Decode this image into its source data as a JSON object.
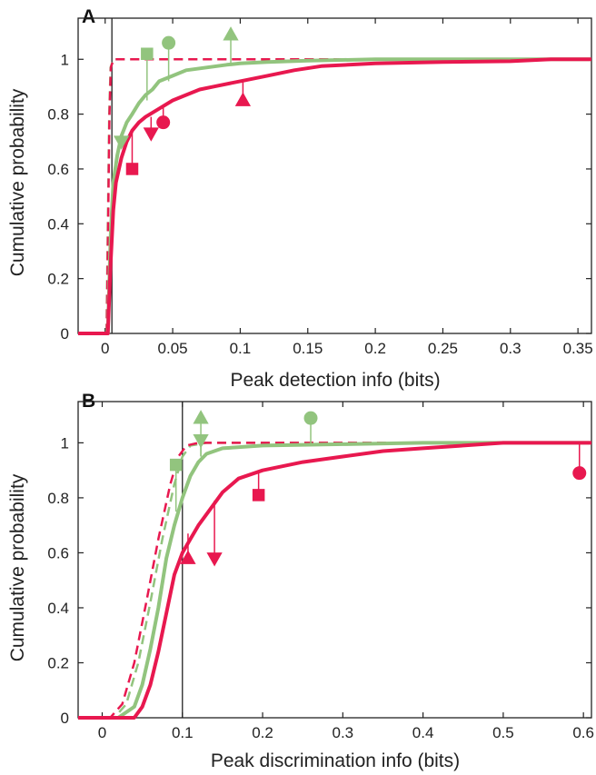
{
  "colors": {
    "green": "#92c47e",
    "red": "#e8184f",
    "axis": "#222222",
    "vline": "#222222"
  },
  "chart_data": [
    {
      "panel": "A",
      "type": "line",
      "xlabel": "Peak detection info (bits)",
      "ylabel": "Cumulative probability",
      "xlim": [
        -0.02,
        0.36
      ],
      "ylim": [
        0,
        1.15
      ],
      "xticks": [
        0,
        0.05,
        0.1,
        0.15,
        0.2,
        0.25,
        0.3,
        0.35
      ],
      "xtick_labels": [
        "0",
        "0.05",
        "0.1",
        "0.15",
        "0.2",
        "0.25",
        "0.3",
        "0.35"
      ],
      "yticks": [
        0,
        0.2,
        0.4,
        0.6,
        0.8,
        1
      ],
      "ytick_labels": [
        "0",
        "0.2",
        "0.4",
        "0.6",
        "0.8",
        "1"
      ],
      "vline": 0.005,
      "series": [
        {
          "color": "green",
          "style": "solid",
          "width": 4,
          "x": [
            -0.02,
            0.002,
            0.004,
            0.006,
            0.009,
            0.012,
            0.016,
            0.02,
            0.025,
            0.03,
            0.035,
            0.04,
            0.05,
            0.06,
            0.075,
            0.09,
            0.1,
            0.12,
            0.15,
            0.2,
            0.36
          ],
          "y": [
            0,
            0,
            0.35,
            0.55,
            0.65,
            0.72,
            0.77,
            0.8,
            0.84,
            0.87,
            0.89,
            0.92,
            0.94,
            0.96,
            0.97,
            0.98,
            0.985,
            0.99,
            0.995,
            1,
            1
          ]
        },
        {
          "color": "red",
          "style": "solid",
          "width": 4,
          "x": [
            -0.02,
            0.002,
            0.004,
            0.006,
            0.008,
            0.012,
            0.016,
            0.02,
            0.025,
            0.03,
            0.04,
            0.05,
            0.06,
            0.07,
            0.08,
            0.1,
            0.12,
            0.14,
            0.16,
            0.2,
            0.25,
            0.3,
            0.33,
            0.36
          ],
          "y": [
            0,
            0,
            0.25,
            0.45,
            0.55,
            0.64,
            0.7,
            0.74,
            0.77,
            0.79,
            0.82,
            0.85,
            0.87,
            0.89,
            0.9,
            0.92,
            0.94,
            0.96,
            0.975,
            0.985,
            0.99,
            0.993,
            1,
            1
          ]
        },
        {
          "color": "green",
          "style": "dashed",
          "width": 2.5,
          "x": [
            -0.02,
            0.001,
            0.002,
            0.003,
            0.004,
            0.006,
            0.36
          ],
          "y": [
            0,
            0,
            0.4,
            0.8,
            0.97,
            1,
            1
          ]
        },
        {
          "color": "red",
          "style": "dashed",
          "width": 2.5,
          "x": [
            -0.02,
            0.0012,
            0.0022,
            0.0032,
            0.0042,
            0.0062,
            0.36
          ],
          "y": [
            0,
            0,
            0.4,
            0.8,
            0.97,
            1,
            1
          ]
        }
      ],
      "markers": [
        {
          "shape": "square",
          "color": "green",
          "x": 0.031,
          "y": 1.02,
          "stem_to": 0.85
        },
        {
          "shape": "circle",
          "color": "green",
          "x": 0.047,
          "y": 1.06,
          "stem_to": 0.92
        },
        {
          "shape": "triangle-up",
          "color": "green",
          "x": 0.093,
          "y": 1.09,
          "stem_to": 0.985
        },
        {
          "shape": "triangle-down",
          "color": "green",
          "x": 0.012,
          "y": 0.7,
          "stem_to": 0.71
        },
        {
          "shape": "square",
          "color": "red",
          "x": 0.02,
          "y": 0.6,
          "stem_to": 0.73
        },
        {
          "shape": "triangle-down",
          "color": "red",
          "x": 0.034,
          "y": 0.73,
          "stem_to": 0.79
        },
        {
          "shape": "circle",
          "color": "red",
          "x": 0.043,
          "y": 0.77,
          "stem_to": 0.83
        },
        {
          "shape": "triangle-up",
          "color": "red",
          "x": 0.102,
          "y": 0.85,
          "stem_to": 0.92
        }
      ]
    },
    {
      "panel": "B",
      "type": "line",
      "xlabel": "Peak discrimination info (bits)",
      "ylabel": "Cumulative probability",
      "xlim": [
        -0.03,
        0.61
      ],
      "ylim": [
        0,
        1.15
      ],
      "xticks": [
        0,
        0.1,
        0.2,
        0.3,
        0.4,
        0.5,
        0.6
      ],
      "xtick_labels": [
        "0",
        "0.1",
        "0.2",
        "0.3",
        "0.4",
        "0.5",
        "0.6"
      ],
      "yticks": [
        0,
        0.2,
        0.4,
        0.6,
        0.8,
        1
      ],
      "ytick_labels": [
        "0",
        "0.2",
        "0.4",
        "0.6",
        "0.8",
        "1"
      ],
      "vline": 0.1,
      "series": [
        {
          "color": "green",
          "style": "solid",
          "width": 4,
          "x": [
            -0.03,
            0.02,
            0.04,
            0.05,
            0.06,
            0.07,
            0.08,
            0.09,
            0.1,
            0.11,
            0.12,
            0.13,
            0.15,
            0.2,
            0.3,
            0.4,
            0.61
          ],
          "y": [
            0,
            0,
            0.04,
            0.12,
            0.25,
            0.4,
            0.58,
            0.7,
            0.8,
            0.88,
            0.93,
            0.96,
            0.98,
            0.99,
            0.995,
            1,
            1
          ]
        },
        {
          "color": "red",
          "style": "solid",
          "width": 4,
          "x": [
            -0.03,
            0.04,
            0.05,
            0.06,
            0.07,
            0.08,
            0.09,
            0.1,
            0.11,
            0.12,
            0.13,
            0.15,
            0.17,
            0.2,
            0.25,
            0.3,
            0.35,
            0.4,
            0.45,
            0.5,
            0.61
          ],
          "y": [
            0,
            0,
            0.04,
            0.12,
            0.24,
            0.38,
            0.52,
            0.6,
            0.65,
            0.7,
            0.74,
            0.82,
            0.87,
            0.9,
            0.93,
            0.95,
            0.97,
            0.98,
            0.99,
            1,
            1
          ]
        },
        {
          "color": "green",
          "style": "dashed",
          "width": 2.5,
          "x": [
            -0.03,
            0.015,
            0.03,
            0.045,
            0.06,
            0.075,
            0.09,
            0.1,
            0.11,
            0.13,
            0.61
          ],
          "y": [
            0,
            0,
            0.05,
            0.2,
            0.42,
            0.65,
            0.85,
            0.95,
            0.99,
            1,
            1
          ]
        },
        {
          "color": "red",
          "style": "dashed",
          "width": 2.5,
          "x": [
            -0.03,
            0.01,
            0.025,
            0.04,
            0.055,
            0.07,
            0.085,
            0.095,
            0.105,
            0.12,
            0.61
          ],
          "y": [
            0,
            0,
            0.05,
            0.2,
            0.42,
            0.65,
            0.85,
            0.95,
            0.99,
            1,
            1
          ]
        }
      ],
      "markers": [
        {
          "shape": "square",
          "color": "green",
          "x": 0.092,
          "y": 0.92,
          "stem_to": 0.75
        },
        {
          "shape": "triangle-up",
          "color": "green",
          "x": 0.123,
          "y": 1.09,
          "stem_to": 0.95
        },
        {
          "shape": "triangle-down",
          "color": "green",
          "x": 0.123,
          "y": 1.01,
          "stem_to": 0.95
        },
        {
          "shape": "circle",
          "color": "green",
          "x": 0.26,
          "y": 1.09,
          "stem_to": 0.99
        },
        {
          "shape": "triangle-up",
          "color": "red",
          "x": 0.107,
          "y": 0.58,
          "stem_to": 0.67
        },
        {
          "shape": "triangle-down",
          "color": "red",
          "x": 0.14,
          "y": 0.58,
          "stem_to": 0.79
        },
        {
          "shape": "square",
          "color": "red",
          "x": 0.195,
          "y": 0.81,
          "stem_to": 0.89
        },
        {
          "shape": "circle",
          "color": "red",
          "x": 0.595,
          "y": 0.89,
          "stem_to": 1.0
        }
      ]
    }
  ]
}
